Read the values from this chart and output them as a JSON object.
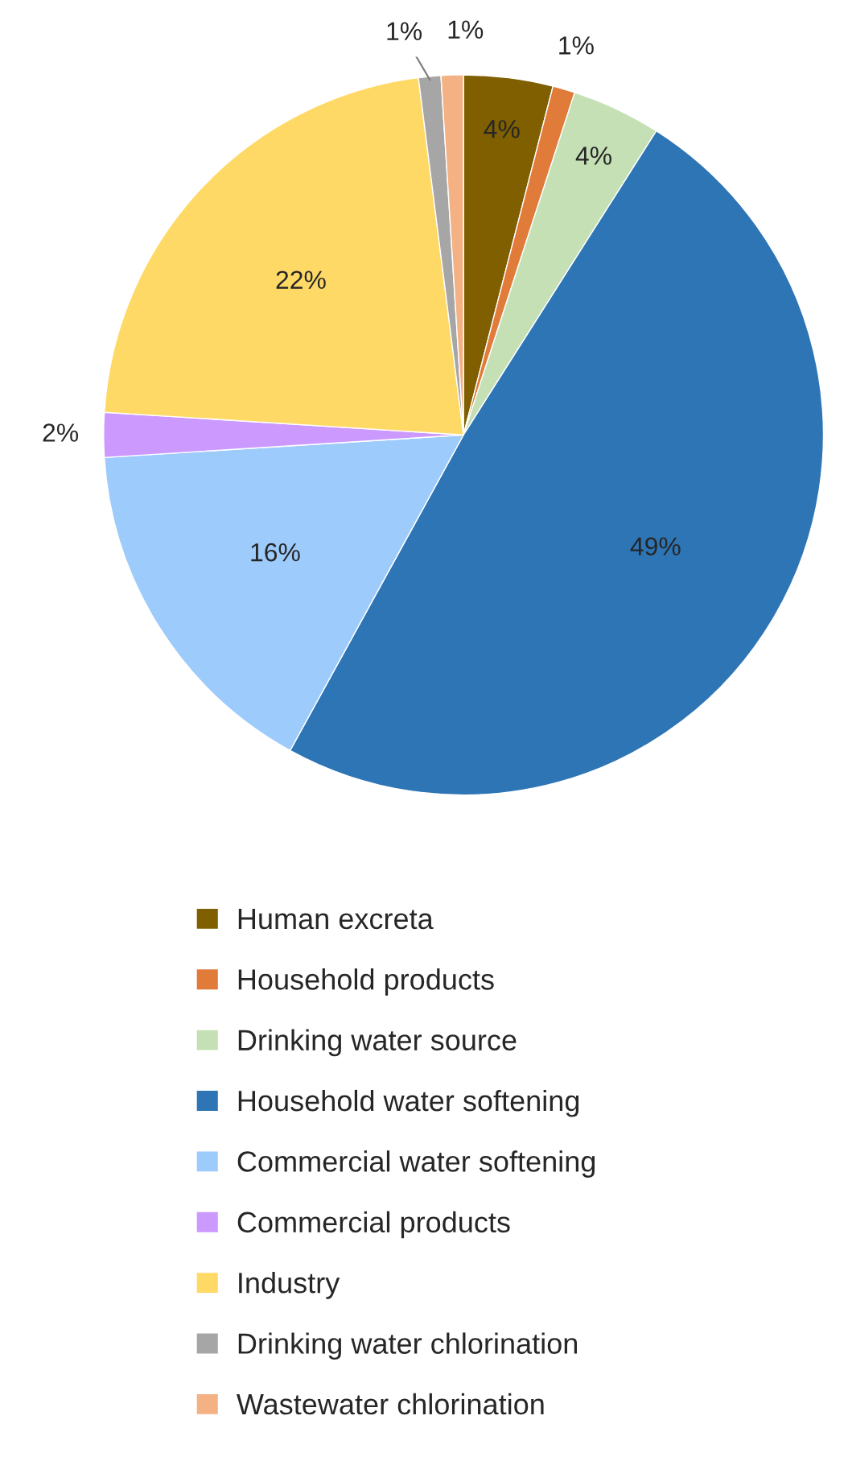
{
  "chart_data": {
    "type": "pie",
    "categories": [
      "Human excreta",
      "Household products",
      "Drinking water source",
      "Household water softening",
      "Commercial water softening",
      "Commercial products",
      "Industry",
      "Drinking water chlorination",
      "Wastewater chlorination"
    ],
    "values": [
      4,
      1,
      4,
      49,
      16,
      2,
      22,
      1,
      1
    ],
    "value_labels": [
      "4%",
      "1%",
      "4%",
      "49%",
      "16%",
      "2%",
      "22%",
      "1%",
      "1%"
    ],
    "colors": [
      "#7f5f00",
      "#e07b39",
      "#c5e0b4",
      "#2e75b6",
      "#9dcbfb",
      "#cc99ff",
      "#ffd966",
      "#a6a6a6",
      "#f4b183"
    ],
    "legend": "bottom"
  }
}
